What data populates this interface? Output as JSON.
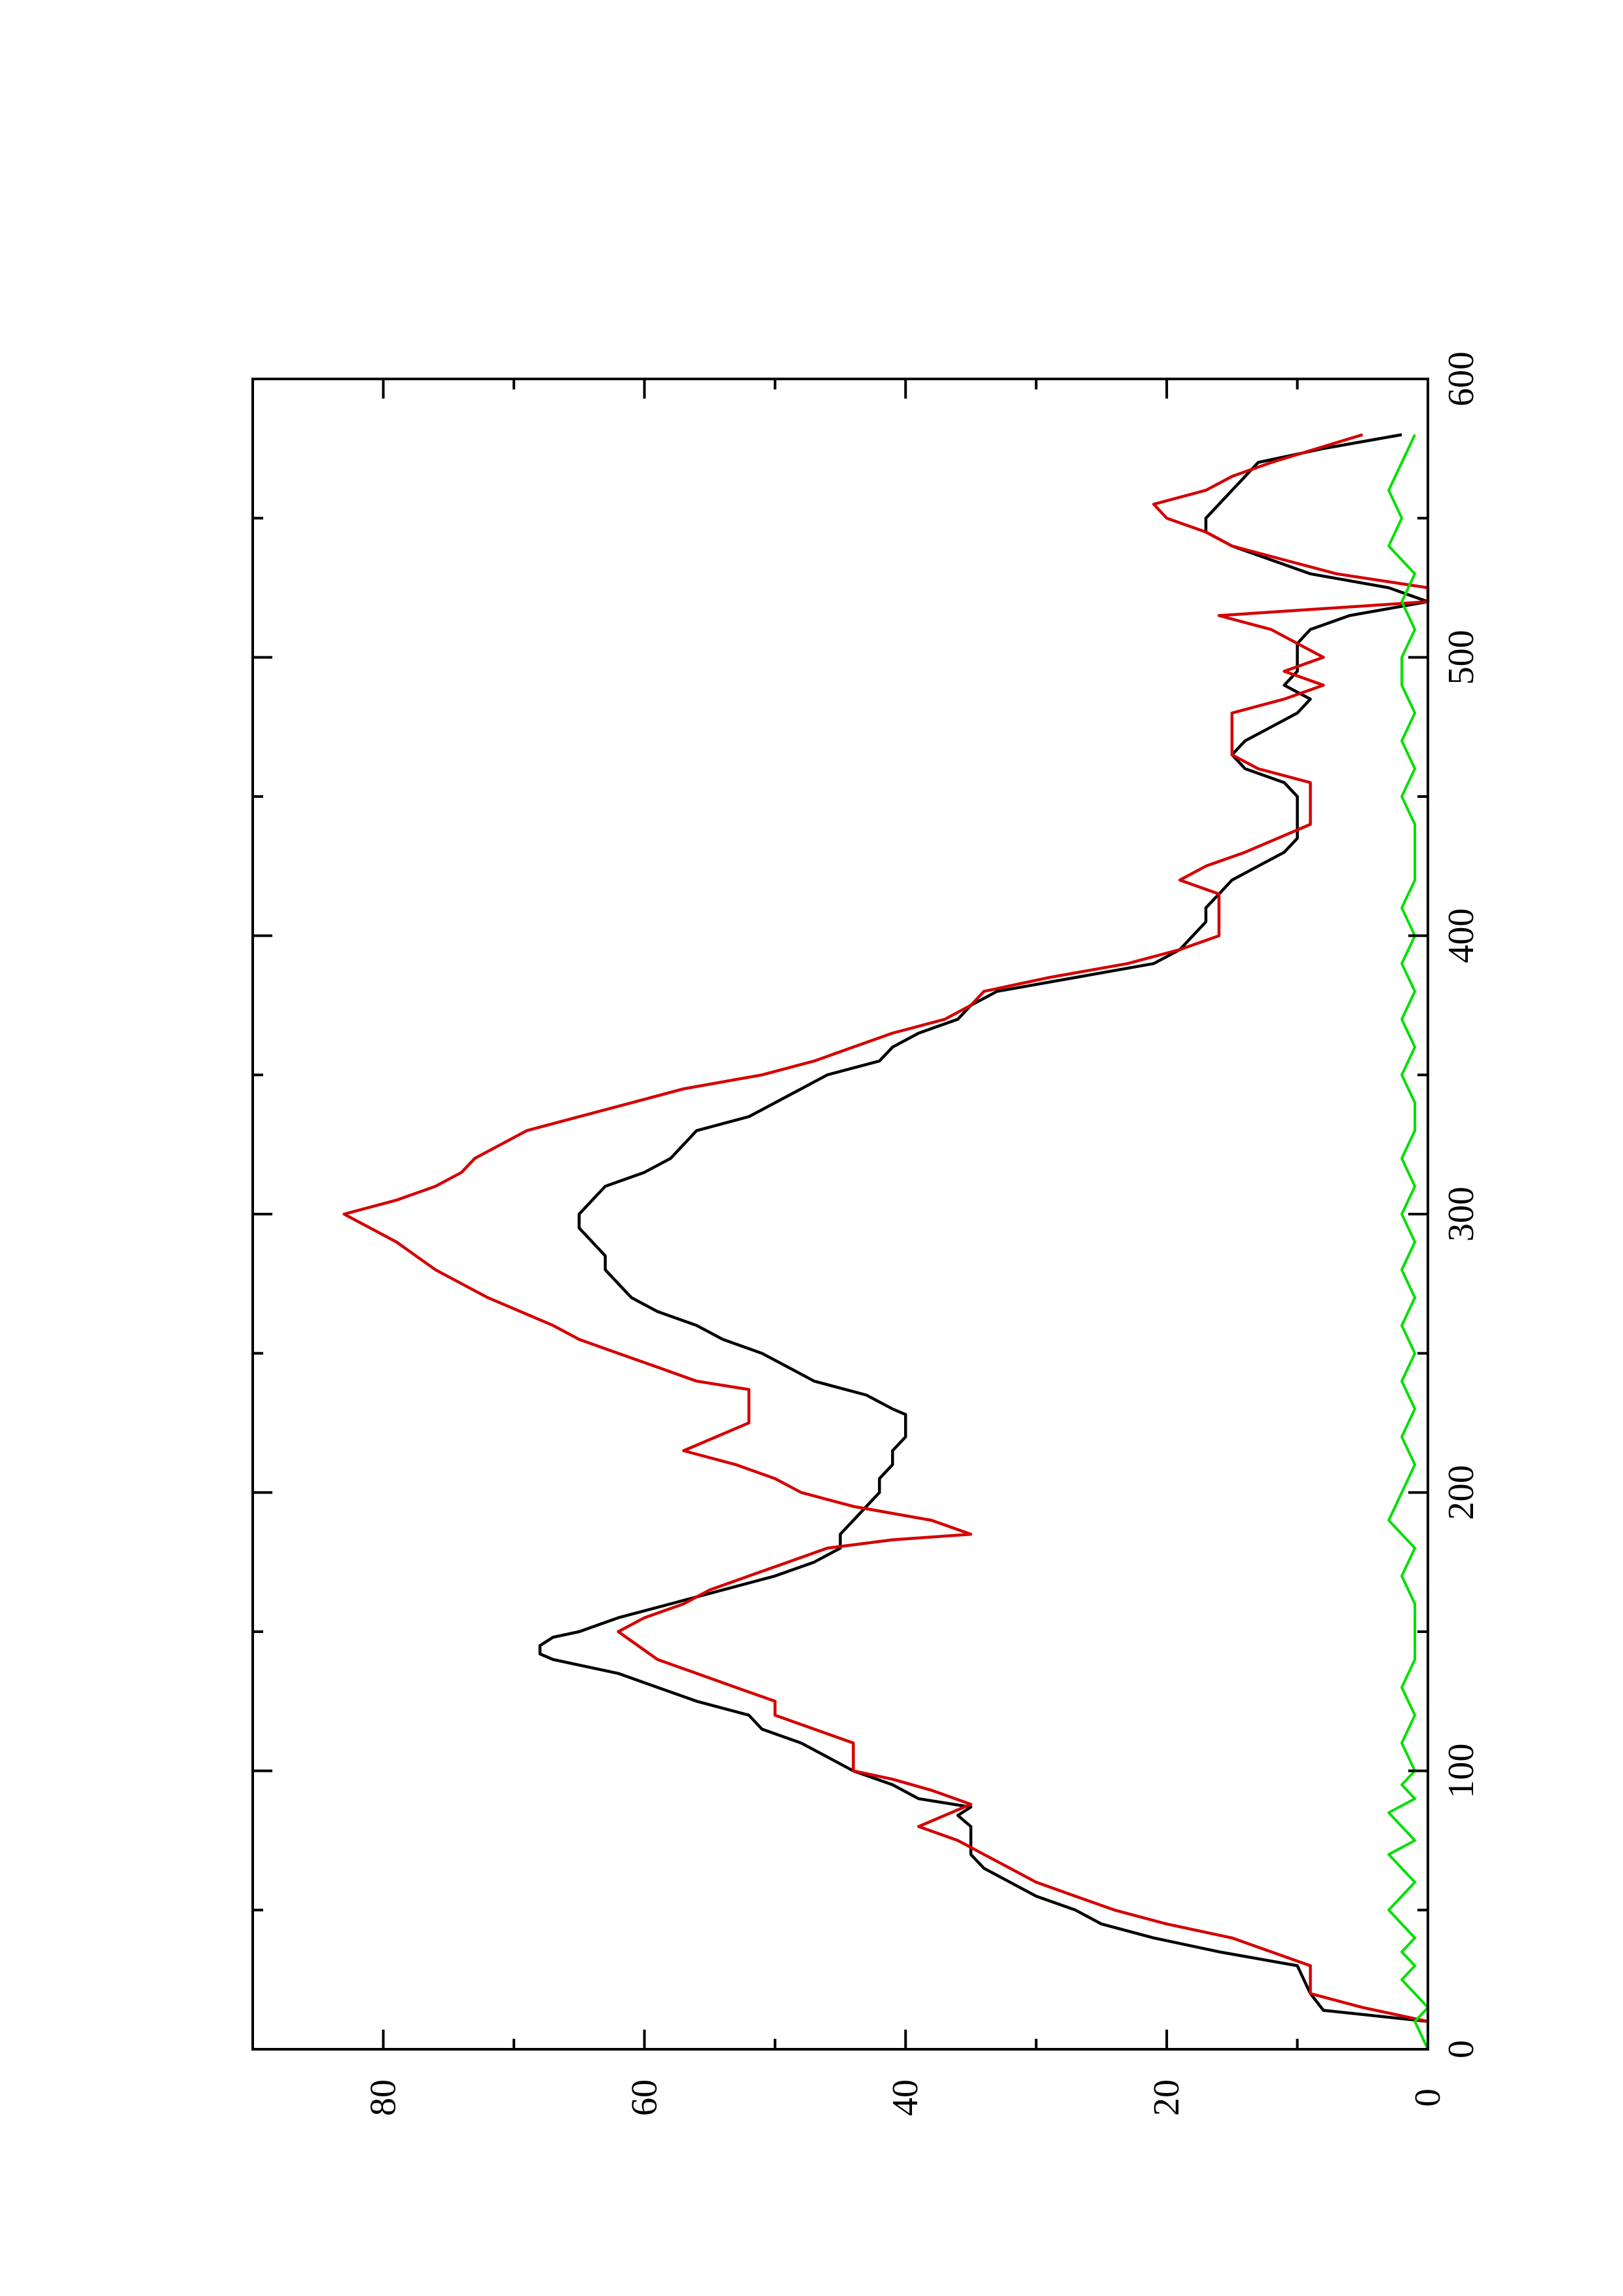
{
  "chart_data": {
    "type": "line",
    "orientation": "rotated-90-ccw",
    "title": "",
    "xlabel": "",
    "ylabel": "",
    "xlim": [
      0,
      600
    ],
    "ylim": [
      0,
      90
    ],
    "x_ticks": [
      "0",
      "100",
      "200",
      "300",
      "400",
      "500",
      "600"
    ],
    "x_minor_ticks": [
      50,
      150,
      250,
      350,
      450,
      550
    ],
    "y_ticks": [
      "0",
      "20",
      "40",
      "60",
      "80"
    ],
    "y_minor_ticks": [
      10,
      30,
      50,
      70
    ],
    "grid": false,
    "legend": "none",
    "series": [
      {
        "color": "#000000",
        "style": "smooth",
        "x": [
          10,
          14,
          20,
          30,
          35,
          40,
          45,
          50,
          55,
          60,
          65,
          70,
          75,
          80,
          84,
          87,
          90,
          95,
          100,
          105,
          110,
          115,
          120,
          125,
          130,
          135,
          140,
          142,
          145,
          148,
          150,
          155,
          160,
          165,
          170,
          175,
          180,
          185,
          190,
          195,
          200,
          205,
          210,
          215,
          220,
          225,
          228,
          230,
          235,
          240,
          245,
          250,
          255,
          260,
          265,
          270,
          275,
          280,
          285,
          290,
          295,
          300,
          305,
          310,
          315,
          320,
          325,
          330,
          335,
          340,
          345,
          350,
          355,
          360,
          365,
          370,
          375,
          380,
          385,
          390,
          395,
          400,
          405,
          410,
          415,
          420,
          425,
          430,
          435,
          440,
          445,
          450,
          455,
          460,
          465,
          470,
          475,
          480,
          485,
          490,
          495,
          500,
          505,
          510,
          515,
          520,
          525,
          530,
          535,
          540,
          545,
          550,
          555,
          560,
          565,
          570,
          575,
          580
        ],
        "y": [
          0,
          8,
          9,
          10,
          16,
          21,
          25,
          27,
          30,
          32,
          34,
          35,
          35,
          35,
          36,
          35,
          39,
          41,
          44,
          46,
          48,
          51,
          52,
          56,
          59,
          62,
          67,
          68,
          68,
          67,
          65,
          62,
          58,
          54,
          50,
          47,
          45,
          45,
          44,
          43,
          42,
          42,
          41,
          41,
          40,
          40,
          40,
          41,
          43,
          47,
          49,
          51,
          54,
          56,
          59,
          61,
          62,
          63,
          63,
          64,
          65,
          65,
          64,
          63,
          60,
          58,
          57,
          56,
          52,
          50,
          48,
          46,
          42,
          41,
          39,
          36,
          35,
          33,
          27,
          21,
          19,
          18,
          17,
          17,
          16,
          15,
          13,
          11,
          10,
          10,
          10,
          10,
          11,
          14,
          15,
          14,
          12,
          10,
          9,
          11,
          10,
          10,
          10,
          9,
          6,
          0,
          3,
          9,
          12,
          15,
          17,
          17,
          16,
          15,
          14,
          13,
          8,
          2
        ],
        "values": [
          0,
          8,
          9,
          10,
          16,
          21,
          25,
          27,
          30,
          32,
          34,
          35,
          35,
          35,
          36,
          35,
          39,
          41,
          44,
          46,
          48,
          51,
          52,
          56,
          59,
          62,
          67,
          68,
          68,
          67,
          65,
          62,
          58,
          54,
          50,
          47,
          45,
          45,
          44,
          43,
          42,
          42,
          41,
          41,
          40,
          40,
          40,
          41,
          43,
          47,
          49,
          51,
          54,
          56,
          59,
          61,
          62,
          63,
          63,
          64,
          65,
          65,
          64,
          63,
          60,
          58,
          57,
          56,
          52,
          50,
          48,
          46,
          42,
          41,
          39,
          36,
          35,
          33,
          27,
          21,
          19,
          18,
          17,
          17,
          16,
          15,
          13,
          11,
          10,
          10,
          10,
          10,
          11,
          14,
          15,
          14,
          12,
          10,
          9,
          11,
          10,
          10,
          10,
          9,
          6,
          0,
          3,
          9,
          12,
          15,
          17,
          17,
          16,
          15,
          14,
          13,
          8,
          2
        ]
      },
      {
        "color": "#d50000",
        "style": "stepped",
        "x": [
          10,
          15,
          20,
          30,
          40,
          45,
          50,
          55,
          60,
          65,
          70,
          75,
          80,
          88,
          93,
          97,
          100,
          105,
          110,
          115,
          120,
          125,
          130,
          135,
          140,
          150,
          155,
          160,
          165,
          170,
          175,
          180,
          183,
          185,
          190,
          195,
          200,
          205,
          210,
          215,
          225,
          230,
          237,
          240,
          245,
          250,
          255,
          260,
          270,
          275,
          280,
          290,
          300,
          305,
          310,
          315,
          320,
          325,
          330,
          335,
          340,
          345,
          350,
          355,
          360,
          365,
          370,
          375,
          380,
          385,
          390,
          395,
          400,
          405,
          410,
          415,
          420,
          425,
          430,
          440,
          445,
          450,
          455,
          460,
          465,
          470,
          475,
          480,
          485,
          490,
          495,
          500,
          505,
          510,
          515,
          520,
          525,
          530,
          535,
          540,
          545,
          550,
          555,
          560,
          565,
          570,
          580
        ],
        "y": [
          0,
          5,
          9,
          9,
          15,
          20,
          24,
          27,
          30,
          32,
          34,
          36,
          39,
          35,
          38,
          41,
          44,
          44,
          44,
          47,
          50,
          50,
          53,
          56,
          59,
          62,
          60,
          57,
          55,
          52,
          49,
          46,
          41,
          35,
          38,
          44,
          48,
          50,
          53,
          57,
          52,
          52,
          52,
          56,
          59,
          62,
          65,
          67,
          72,
          74,
          76,
          79,
          83,
          79,
          76,
          74,
          73,
          71,
          69,
          65,
          61,
          57,
          51,
          47,
          44,
          41,
          37,
          35,
          34,
          29,
          23,
          19,
          16,
          16,
          16,
          16,
          19,
          17,
          14,
          9,
          9,
          9,
          9,
          13,
          15,
          15,
          15,
          15,
          11,
          8,
          11,
          8,
          10,
          12,
          16,
          0,
          0,
          7,
          11,
          15,
          17,
          20,
          21,
          17,
          15,
          12,
          5
        ],
        "values": [
          0,
          5,
          9,
          9,
          15,
          20,
          24,
          27,
          30,
          32,
          34,
          36,
          39,
          35,
          38,
          41,
          44,
          44,
          44,
          47,
          50,
          50,
          53,
          56,
          59,
          62,
          60,
          57,
          55,
          52,
          49,
          46,
          41,
          35,
          38,
          44,
          48,
          50,
          53,
          57,
          52,
          52,
          52,
          56,
          59,
          62,
          65,
          67,
          72,
          74,
          76,
          79,
          83,
          79,
          76,
          74,
          73,
          71,
          69,
          65,
          61,
          57,
          51,
          47,
          44,
          41,
          37,
          35,
          34,
          29,
          23,
          19,
          16,
          16,
          16,
          16,
          19,
          17,
          14,
          9,
          9,
          9,
          9,
          13,
          15,
          15,
          15,
          15,
          11,
          8,
          11,
          8,
          10,
          12,
          16,
          0,
          0,
          7,
          11,
          15,
          17,
          20,
          21,
          17,
          15,
          12,
          5
        ]
      },
      {
        "color": "#00e000",
        "style": "noisy",
        "x": [
          0,
          10,
          15,
          20,
          25,
          30,
          35,
          40,
          45,
          50,
          55,
          60,
          65,
          70,
          75,
          80,
          85,
          90,
          95,
          100,
          110,
          120,
          130,
          140,
          150,
          160,
          170,
          180,
          190,
          200,
          210,
          220,
          230,
          240,
          250,
          260,
          270,
          280,
          290,
          300,
          310,
          320,
          330,
          340,
          350,
          360,
          370,
          380,
          390,
          400,
          410,
          420,
          430,
          440,
          450,
          460,
          470,
          480,
          490,
          500,
          510,
          520,
          530,
          540,
          550,
          560,
          570,
          580
        ],
        "y": [
          0,
          1,
          0,
          1,
          2,
          1,
          2,
          1,
          2,
          3,
          2,
          1,
          2,
          3,
          1,
          2,
          3,
          1,
          2,
          1,
          2,
          1,
          2,
          1,
          1,
          1,
          2,
          1,
          3,
          2,
          1,
          2,
          1,
          2,
          1,
          2,
          1,
          2,
          1,
          2,
          1,
          2,
          1,
          1,
          2,
          1,
          2,
          1,
          2,
          1,
          2,
          1,
          1,
          1,
          2,
          1,
          2,
          1,
          2,
          2,
          1,
          2,
          1,
          3,
          2,
          3,
          2,
          1
        ],
        "values": [
          0,
          1,
          0,
          1,
          2,
          1,
          2,
          1,
          2,
          3,
          2,
          1,
          2,
          3,
          1,
          2,
          3,
          1,
          2,
          1,
          2,
          1,
          2,
          1,
          1,
          1,
          2,
          1,
          3,
          2,
          1,
          2,
          1,
          2,
          1,
          2,
          1,
          2,
          1,
          2,
          1,
          2,
          1,
          1,
          2,
          1,
          2,
          1,
          2,
          1,
          2,
          1,
          1,
          1,
          2,
          1,
          2,
          1,
          2,
          2,
          1,
          2,
          1,
          3,
          2,
          3,
          2,
          1
        ]
      }
    ]
  }
}
